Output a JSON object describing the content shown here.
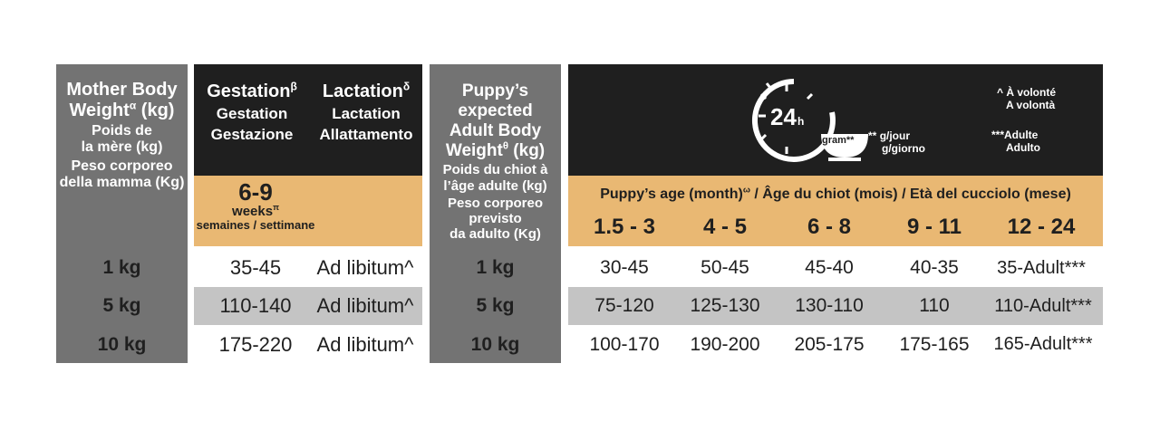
{
  "mother": {
    "title_en": "Mother Body",
    "title_en2": "Weight",
    "title_en_sup": "α",
    "title_en_unit": "(kg)",
    "title_fr": "Poids de",
    "title_fr2": "la mère (kg)",
    "title_it": "Peso corporeo",
    "title_it2": "della mamma (Kg)",
    "rows": [
      "1 kg",
      "5 kg",
      "10 kg"
    ]
  },
  "gestation": {
    "title_en": "Gestation",
    "title_sup": "β",
    "title_fr": "Gestation",
    "title_it": "Gestazione",
    "duration": "6-9",
    "unit_en": "weeks",
    "unit_sup": "π",
    "unit_fr_it": "semaines / settimane",
    "rows": [
      "35-45",
      "110-140",
      "175-220"
    ]
  },
  "lactation": {
    "title_en": "Lactation",
    "title_sup": "δ",
    "title_fr": "Lactation",
    "title_it": "Allattamento",
    "rows": [
      "Ad libitum^",
      "Ad libitum^",
      "Ad libitum^"
    ]
  },
  "puppy_weight": {
    "title_en": "Puppy’s expected",
    "title_en2": "Adult Body",
    "title_en3": "Weight",
    "title_sup": "θ",
    "title_unit": "(kg)",
    "title_fr": "Poids du chiot à",
    "title_fr2": "l’âge adulte (kg)",
    "title_it": "Peso corporeo previsto",
    "title_it2": "da adulto (Kg)",
    "rows": [
      "1 kg",
      "5 kg",
      "10 kg"
    ]
  },
  "legend": {
    "clock_label": "24",
    "clock_sub": "h",
    "bowl_label": "gram**",
    "bowl_note": "**",
    "bowl_fr": "g/jour",
    "bowl_it": "g/giorno",
    "volonte_fr": "^ À volonté",
    "volonte_it": "A volontà",
    "adult_fr": "***Adulte",
    "adult_it": "Adulto"
  },
  "age": {
    "title": "Puppy’s age (month)",
    "title_sup": "ω",
    "title_rest": " /  Âge du chiot (mois)  /  Età del cucciolo (mese)",
    "columns": [
      "1.5 - 3",
      "4 - 5",
      "6 - 8",
      "9 - 11",
      "12 - 24"
    ],
    "rows": [
      [
        "30-45",
        "50-45",
        "45-40",
        "40-35",
        "35-Adult***"
      ],
      [
        "75-120",
        "125-130",
        "130-110",
        "110",
        "110-Adult***"
      ],
      [
        "100-170",
        "190-200",
        "205-175",
        "175-165",
        "165-Adult***"
      ]
    ]
  },
  "colors": {
    "grey": "#737373",
    "black": "#1f1f1f",
    "tan": "#e9b873",
    "light_grey": "#c4c4c4"
  }
}
